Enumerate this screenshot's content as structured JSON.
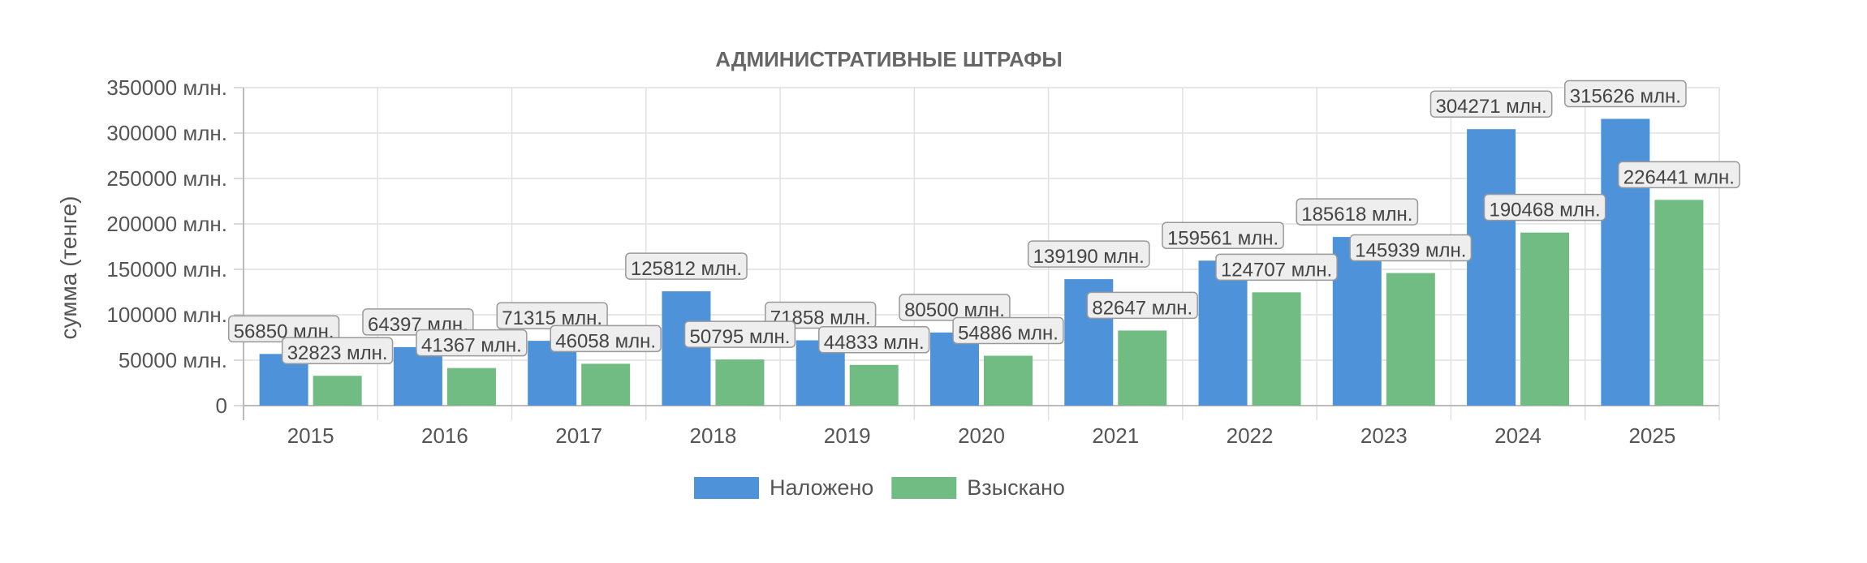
{
  "chart_data": {
    "type": "bar",
    "title": "АДМИНИСТРАТИВНЫЕ ШТРАФЫ",
    "ylabel": "сумма (тенге)",
    "xlabel": "",
    "categories": [
      "2015",
      "2016",
      "2017",
      "2018",
      "2019",
      "2020",
      "2021",
      "2022",
      "2023",
      "2024",
      "2025"
    ],
    "series": [
      {
        "name": "Наложено",
        "color": "#4e93d9",
        "values": [
          56850,
          64397,
          71315,
          125812,
          71858,
          80500,
          139190,
          159561,
          185618,
          304271,
          315626
        ],
        "labels": [
          "56850 млн.",
          "64397 млн.",
          "71315 млн.",
          "125812 млн.",
          "71858 млн.",
          "80500 млн.",
          "139190 млн.",
          "159561 млн.",
          "185618 млн.",
          "304271 млн.",
          "315626 млн."
        ]
      },
      {
        "name": "Взыскано",
        "color": "#70bc82",
        "values": [
          32823,
          41367,
          46058,
          50795,
          44833,
          54886,
          82647,
          124707,
          145939,
          190468,
          226441
        ],
        "labels": [
          "32823 млн.",
          "41367 млн.",
          "46058 млн.",
          "50795 млн.",
          "44833 млн.",
          "54886 млн.",
          "82647 млн.",
          "124707 млн.",
          "145939 млн.",
          "190468 млн.",
          "226441 млн."
        ]
      }
    ],
    "ylim": [
      0,
      350000
    ],
    "yticks": [
      0,
      50000,
      100000,
      150000,
      200000,
      250000,
      300000,
      350000
    ],
    "ytick_labels": [
      "0",
      "50000 млн.",
      "100000 млн.",
      "150000 млн.",
      "200000 млн.",
      "250000 млн.",
      "300000 млн.",
      "350000 млн."
    ],
    "grid": true,
    "legend_position": "bottom"
  }
}
